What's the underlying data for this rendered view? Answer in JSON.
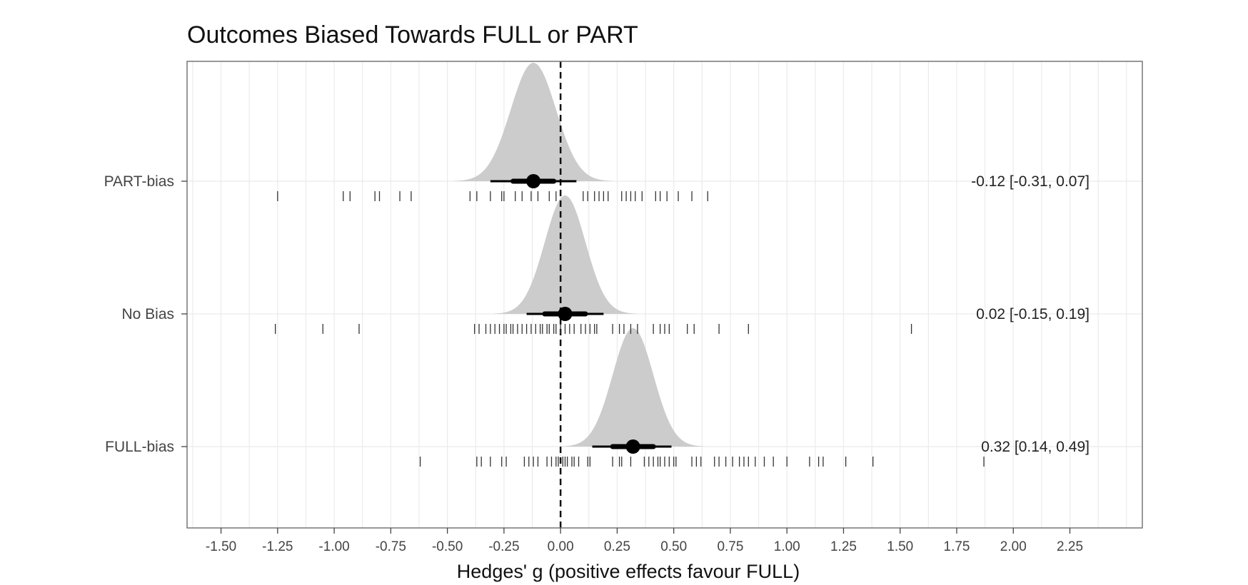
{
  "chart_data": {
    "type": "density-interval",
    "title": "Outcomes Biased Towards FULL or PART",
    "xlabel": "Hedges' g (positive effects favour FULL)",
    "ylabel": "",
    "xlim": [
      -1.65,
      2.57
    ],
    "xticks": [
      -1.5,
      -1.25,
      -1.0,
      -0.75,
      -0.5,
      -0.25,
      0.0,
      0.25,
      0.5,
      0.75,
      1.0,
      1.25,
      1.5,
      1.75,
      2.0,
      2.25
    ],
    "xtick_labels": [
      "-1.50",
      "-1.25",
      "-1.00",
      "-0.75",
      "-0.50",
      "-0.25",
      "0.00",
      "0.25",
      "0.50",
      "0.75",
      "1.00",
      "1.25",
      "1.50",
      "1.75",
      "2.00",
      "2.25"
    ],
    "reference_line": 0,
    "grid": true,
    "colors": {
      "density": "#cccccc",
      "interval": "#000000",
      "ticks": "#333333",
      "grid": "#ebebeb",
      "border": "#777777"
    },
    "groups": [
      {
        "label": "PART-bias",
        "estimate": -0.12,
        "ci": [
          -0.31,
          0.07
        ],
        "inner": [
          -0.21,
          -0.03
        ],
        "sd": 0.1,
        "annotation": "-0.12 [-0.31, 0.07]",
        "points": [
          -1.25,
          -0.96,
          -0.93,
          -0.82,
          -0.8,
          -0.71,
          -0.66,
          -0.4,
          -0.37,
          -0.31,
          -0.26,
          -0.25,
          -0.2,
          -0.17,
          -0.13,
          -0.1,
          -0.05,
          -0.02,
          0.1,
          0.12,
          0.15,
          0.17,
          0.19,
          0.21,
          0.27,
          0.29,
          0.31,
          0.33,
          0.36,
          0.42,
          0.44,
          0.47,
          0.52,
          0.58,
          0.65
        ]
      },
      {
        "label": "No Bias",
        "estimate": 0.02,
        "ci": [
          -0.15,
          0.19
        ],
        "inner": [
          -0.07,
          0.11
        ],
        "sd": 0.09,
        "annotation": "0.02 [-0.15, 0.19]",
        "points": [
          -1.26,
          -1.05,
          -0.89,
          -0.38,
          -0.36,
          -0.33,
          -0.31,
          -0.29,
          -0.27,
          -0.25,
          -0.24,
          -0.22,
          -0.21,
          -0.19,
          -0.17,
          -0.15,
          -0.13,
          -0.11,
          -0.09,
          -0.08,
          -0.06,
          -0.05,
          -0.03,
          -0.02,
          0.0,
          0.02,
          0.04,
          0.06,
          0.09,
          0.11,
          0.13,
          0.15,
          0.16,
          0.23,
          0.26,
          0.28,
          0.31,
          0.34,
          0.41,
          0.44,
          0.46,
          0.48,
          0.56,
          0.59,
          0.7,
          0.83,
          1.55
        ]
      },
      {
        "label": "FULL-bias",
        "estimate": 0.32,
        "ci": [
          0.14,
          0.49
        ],
        "inner": [
          0.23,
          0.41
        ],
        "sd": 0.09,
        "annotation": "0.32 [0.14, 0.49]",
        "points": [
          -0.62,
          -0.37,
          -0.35,
          -0.31,
          -0.26,
          -0.24,
          -0.16,
          -0.14,
          -0.12,
          -0.1,
          -0.06,
          -0.04,
          -0.02,
          -0.01,
          0.01,
          0.02,
          0.03,
          0.05,
          0.06,
          0.08,
          0.12,
          0.13,
          0.23,
          0.26,
          0.27,
          0.31,
          0.37,
          0.39,
          0.41,
          0.43,
          0.44,
          0.46,
          0.48,
          0.5,
          0.51,
          0.58,
          0.6,
          0.62,
          0.68,
          0.7,
          0.73,
          0.76,
          0.79,
          0.81,
          0.83,
          0.86,
          0.9,
          0.94,
          1.0,
          1.1,
          1.14,
          1.16,
          1.26,
          1.38,
          1.87
        ]
      }
    ]
  }
}
